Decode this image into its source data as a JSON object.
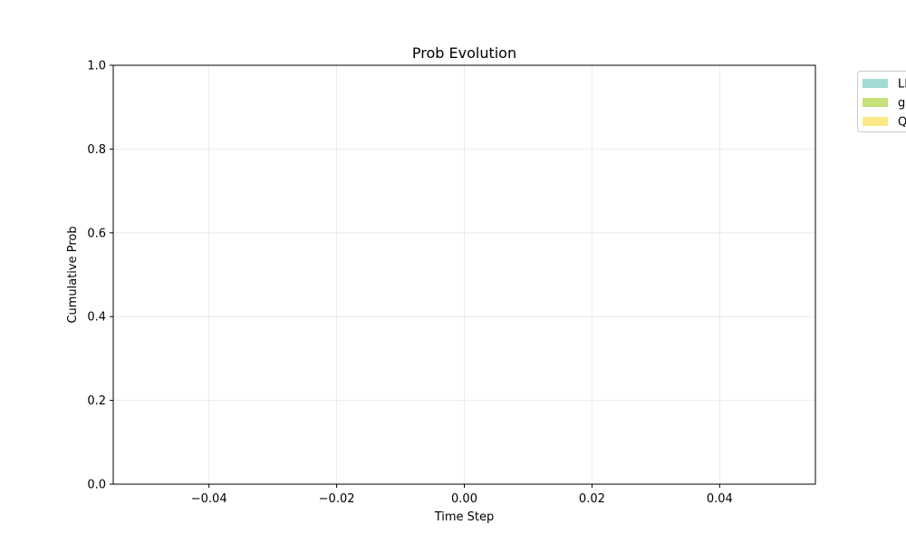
{
  "chart_data": {
    "type": "area",
    "title": "Prob Evolution",
    "xlabel": "Time Step",
    "ylabel": "Cumulative Prob",
    "xlim": [
      -0.055,
      0.055
    ],
    "ylim": [
      0.0,
      1.0
    ],
    "xticks": [
      -0.04,
      -0.02,
      0.0,
      0.02,
      0.04
    ],
    "xtick_labels": [
      "−0.04",
      "−0.02",
      "0.00",
      "0.02",
      "0.04"
    ],
    "yticks": [
      0.0,
      0.2,
      0.4,
      0.6,
      0.8,
      1.0
    ],
    "ytick_labels": [
      "0.0",
      "0.2",
      "0.4",
      "0.6",
      "0.8",
      "1.0"
    ],
    "grid": true,
    "legend_placement": "outside-top-right",
    "x": [],
    "series": [
      {
        "name": "LL",
        "color": "#a3dcd5",
        "values": []
      },
      {
        "name": "g",
        "color": "#c5e17a",
        "values": []
      },
      {
        "name": "Q",
        "color": "#fde989",
        "values": []
      }
    ]
  }
}
